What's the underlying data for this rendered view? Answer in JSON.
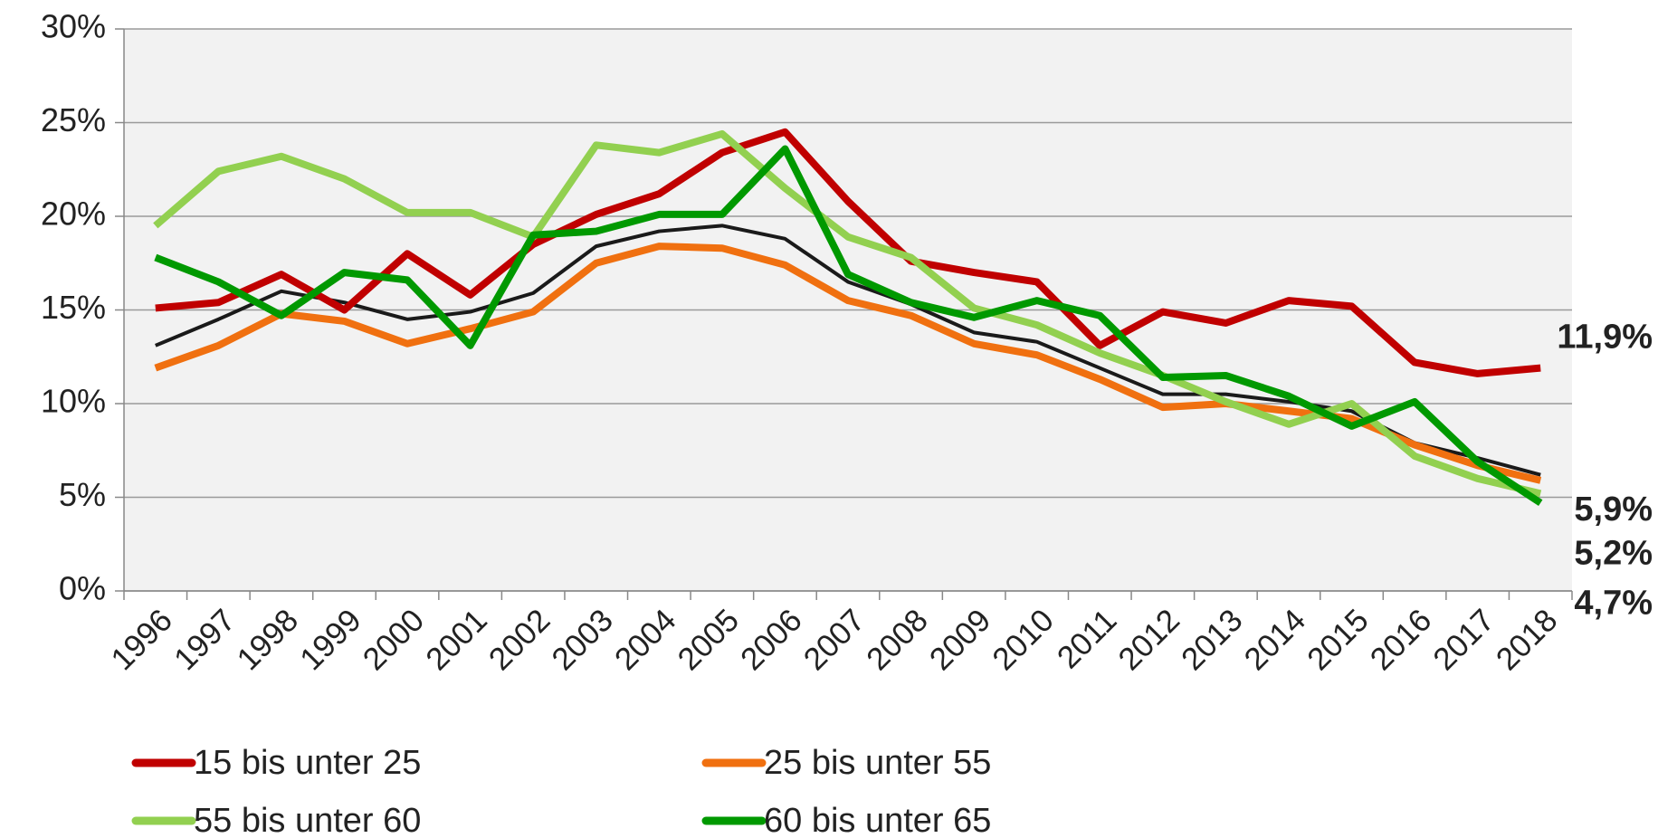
{
  "chart_data": {
    "type": "line",
    "categories": [
      "1996",
      "1997",
      "1998",
      "1999",
      "2000",
      "2001",
      "2002",
      "2003",
      "2004",
      "2005",
      "2006",
      "2007",
      "2008",
      "2009",
      "2010",
      "2011",
      "2012",
      "2013",
      "2014",
      "2015",
      "2016",
      "2017",
      "2018"
    ],
    "series": [
      {
        "name": "15 bis unter 25",
        "color": "#c00000",
        "values": [
          15.1,
          15.4,
          16.9,
          15.0,
          18.0,
          15.8,
          18.5,
          20.1,
          21.2,
          23.4,
          24.5,
          20.8,
          17.6,
          17.0,
          16.5,
          13.1,
          14.9,
          14.3,
          15.5,
          15.2,
          12.2,
          11.6,
          11.9
        ],
        "value_labels": [
          null,
          null,
          null,
          null,
          null,
          null,
          null,
          null,
          null,
          null,
          null,
          null,
          null,
          null,
          null,
          null,
          null,
          null,
          null,
          null,
          null,
          null,
          "11,9%"
        ]
      },
      {
        "name": "25 bis unter 55",
        "color": "#f07010",
        "values": [
          11.9,
          13.1,
          14.8,
          14.4,
          13.2,
          14.0,
          14.9,
          17.5,
          18.4,
          18.3,
          17.4,
          15.5,
          14.7,
          13.2,
          12.6,
          11.3,
          9.8,
          10.0,
          9.6,
          9.2,
          7.8,
          6.7,
          5.9
        ],
        "value_labels": [
          null,
          null,
          null,
          null,
          null,
          null,
          null,
          null,
          null,
          null,
          null,
          null,
          null,
          null,
          null,
          null,
          null,
          null,
          null,
          null,
          null,
          null,
          "5,9%"
        ]
      },
      {
        "name": "55 bis unter 60",
        "color": "#92d050",
        "values": [
          19.5,
          22.4,
          23.2,
          22.0,
          20.2,
          20.2,
          18.9,
          23.8,
          23.4,
          24.4,
          21.5,
          18.9,
          17.8,
          15.1,
          14.2,
          12.7,
          11.5,
          10.1,
          8.9,
          10.0,
          7.2,
          6.0,
          5.2
        ],
        "value_labels": [
          null,
          null,
          null,
          null,
          null,
          null,
          null,
          null,
          null,
          null,
          null,
          null,
          null,
          null,
          null,
          null,
          null,
          null,
          null,
          null,
          null,
          null,
          "5,2%"
        ]
      },
      {
        "name": "60 bis unter 65",
        "color": "#009900",
        "values": [
          17.8,
          16.5,
          14.7,
          17.0,
          16.6,
          13.1,
          19.0,
          19.2,
          20.1,
          20.1,
          23.6,
          16.9,
          15.4,
          14.6,
          15.5,
          14.7,
          11.4,
          11.5,
          10.4,
          8.8,
          10.1,
          6.9,
          4.7
        ],
        "value_labels": [
          null,
          null,
          null,
          null,
          null,
          null,
          null,
          null,
          null,
          null,
          null,
          null,
          null,
          null,
          null,
          null,
          null,
          null,
          null,
          null,
          null,
          null,
          "4,7%"
        ]
      },
      {
        "color": "#1a1a1a",
        "values": [
          13.1,
          14.5,
          16.0,
          15.4,
          14.5,
          14.9,
          15.9,
          18.4,
          19.2,
          19.5,
          18.8,
          16.5,
          15.3,
          13.8,
          13.3,
          11.9,
          10.5,
          10.5,
          10.1,
          9.6,
          7.9,
          7.1,
          6.2
        ]
      }
    ],
    "ylim": [
      0,
      30
    ],
    "yticks": [
      {
        "value": 0,
        "label": "0%"
      },
      {
        "value": 5,
        "label": "5%"
      },
      {
        "value": 10,
        "label": "10%"
      },
      {
        "value": 15,
        "label": "15%"
      },
      {
        "value": 20,
        "label": "20%"
      },
      {
        "value": 25,
        "label": "25%"
      },
      {
        "value": 30,
        "label": "30%"
      }
    ],
    "grid": true
  }
}
